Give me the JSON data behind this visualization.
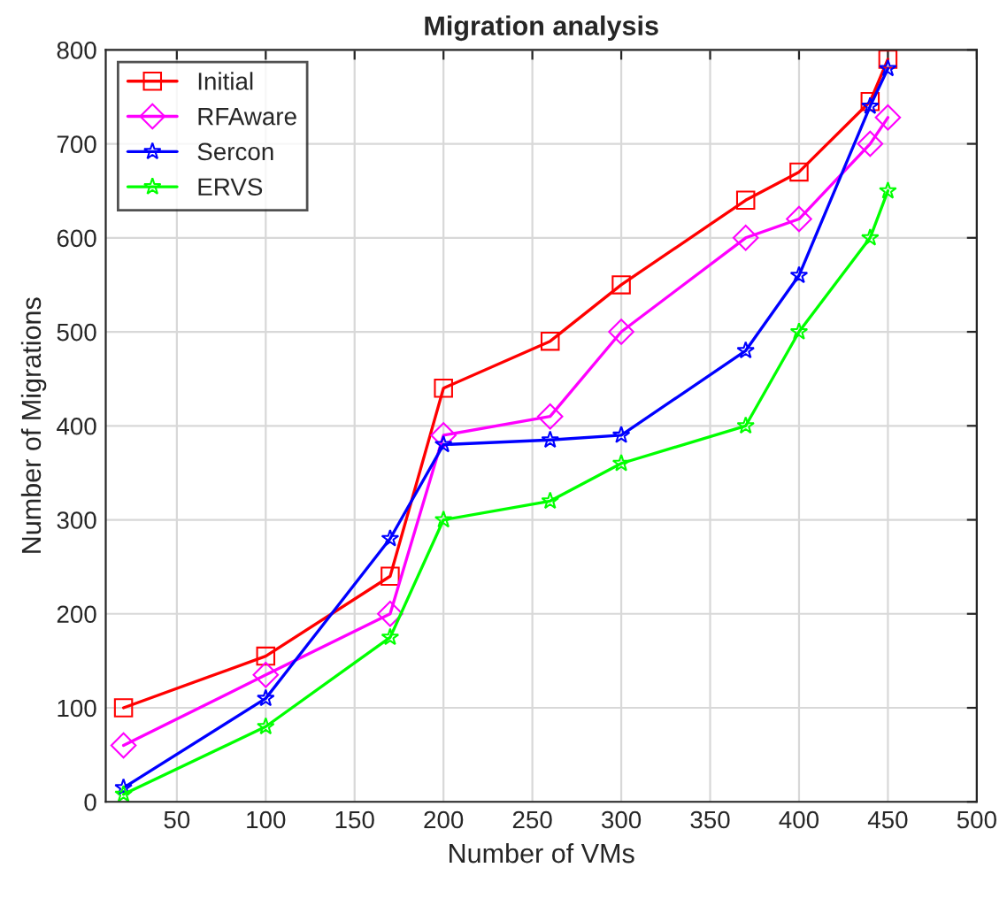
{
  "chart_data": {
    "type": "line",
    "title": "Migration analysis",
    "xlabel": "Number of VMs",
    "ylabel": "Number of Migrations",
    "x": [
      20,
      100,
      170,
      200,
      260,
      300,
      370,
      400,
      440,
      450
    ],
    "series": [
      {
        "name": "Initial",
        "color": "#ff0000",
        "marker": "square",
        "values": [
          100,
          155,
          240,
          440,
          490,
          550,
          640,
          670,
          745,
          790
        ]
      },
      {
        "name": "RFAware",
        "color": "#ff00ff",
        "marker": "diamond",
        "values": [
          60,
          135,
          200,
          390,
          410,
          500,
          600,
          620,
          700,
          728
        ]
      },
      {
        "name": "Sercon",
        "color": "#0000ff",
        "marker": "star",
        "values": [
          15,
          110,
          280,
          380,
          385,
          390,
          480,
          560,
          740,
          780
        ]
      },
      {
        "name": "ERVS",
        "color": "#00ff00",
        "marker": "star",
        "values": [
          8,
          80,
          175,
          300,
          320,
          360,
          400,
          500,
          600,
          650
        ]
      }
    ],
    "xlim": [
      10,
      500
    ],
    "xticks": [
      50,
      100,
      150,
      200,
      250,
      300,
      350,
      400,
      450,
      500
    ],
    "ylim": [
      0,
      800
    ],
    "yticks": [
      0,
      100,
      200,
      300,
      400,
      500,
      600,
      700,
      800
    ],
    "grid": true,
    "legend": "top left",
    "line_style": "solid"
  }
}
